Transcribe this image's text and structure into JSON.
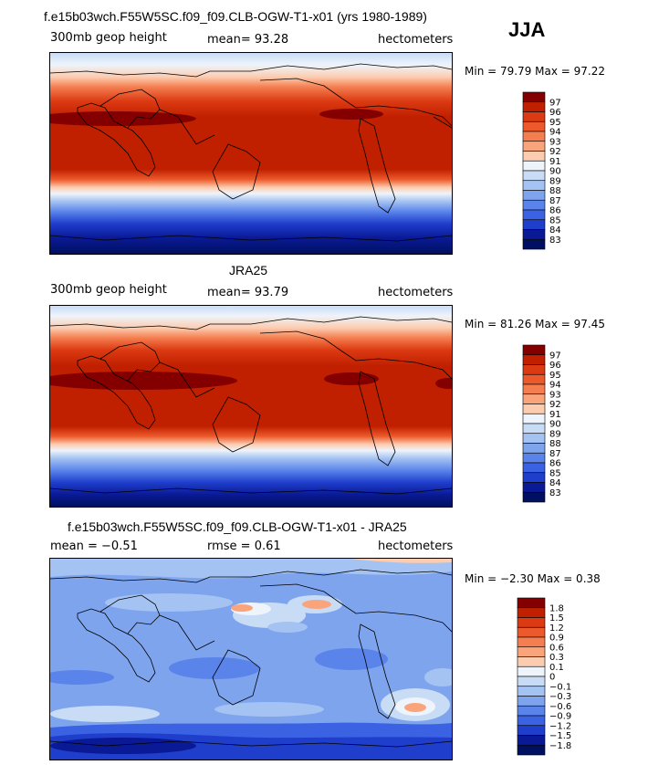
{
  "season": "JJA",
  "panels": [
    {
      "title": "f.e15b03wch.F55W5SC.f09_f09.CLB-OGW-T1-x01 (yrs 1980-1989)",
      "left_label": "300mb geop height",
      "center_label": "mean=  93.28",
      "right_label": "hectometers",
      "minmax": "Min =  79.79 Max =  97.22",
      "colorbar_labels": [
        "97",
        "96",
        "95",
        "94",
        "93",
        "92",
        "91",
        "90",
        "89",
        "88",
        "87",
        "86",
        "85",
        "84",
        "83"
      ],
      "colors": [
        "#840000",
        "#c02000",
        "#dc3a12",
        "#ec5a2c",
        "#f47e50",
        "#f9a47a",
        "#fcccb0",
        "#eef4fb",
        "#c9dcf6",
        "#a4c2f2",
        "#7ea4ee",
        "#5a84ea",
        "#3a62e2",
        "#1f3ecc",
        "#0a1a96",
        "#001060"
      ]
    },
    {
      "title": "JRA25",
      "left_label": "300mb geop height",
      "center_label": "mean=  93.79",
      "right_label": "hectometers",
      "minmax": "Min =  81.26 Max =  97.45",
      "colorbar_labels": [
        "97",
        "96",
        "95",
        "94",
        "93",
        "92",
        "91",
        "90",
        "89",
        "88",
        "87",
        "86",
        "85",
        "84",
        "83"
      ],
      "colors": [
        "#840000",
        "#c02000",
        "#dc3a12",
        "#ec5a2c",
        "#f47e50",
        "#f9a47a",
        "#fcccb0",
        "#eef4fb",
        "#c9dcf6",
        "#a4c2f2",
        "#7ea4ee",
        "#5a84ea",
        "#3a62e2",
        "#1f3ecc",
        "#0a1a96",
        "#001060"
      ]
    },
    {
      "title": "f.e15b03wch.F55W5SC.f09_f09.CLB-OGW-T1-x01 - JRA25",
      "left_label": "mean =  −0.51",
      "center_label": "rmse =   0.61",
      "right_label": "hectometers",
      "minmax": "Min =  −2.30 Max =   0.38",
      "colorbar_labels": [
        "1.8",
        "1.5",
        "1.2",
        "0.9",
        "0.6",
        "0.3",
        "0.1",
        "0",
        "−0.1",
        "−0.3",
        "−0.6",
        "−0.9",
        "−1.2",
        "−1.5",
        "−1.8"
      ],
      "colors": [
        "#840000",
        "#c02000",
        "#dc3a12",
        "#ec5a2c",
        "#f47e50",
        "#f9a47a",
        "#fcccb0",
        "#eef4fb",
        "#c9dcf6",
        "#a4c2f2",
        "#7ea4ee",
        "#5a84ea",
        "#3a62e2",
        "#1f3ecc",
        "#0a1a96",
        "#001060"
      ]
    }
  ]
}
